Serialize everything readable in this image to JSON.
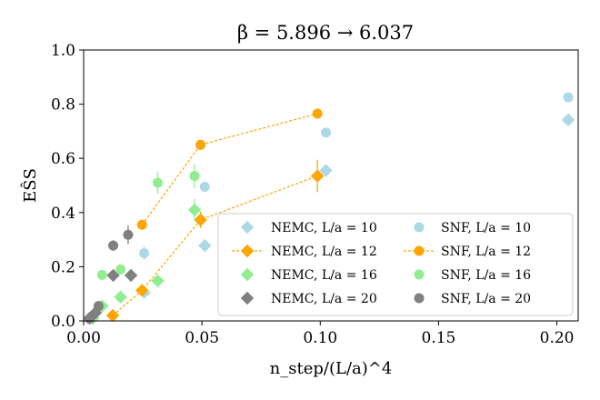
{
  "chart_data": {
    "type": "scatter",
    "title": "β = 5.896 → 6.037",
    "xlabel": "n_step/(L/a)^4",
    "ylabel": "EŜS",
    "xlim": [
      0.0,
      0.209
    ],
    "ylim": [
      0.0,
      1.0
    ],
    "xticks": [
      0.0,
      0.05,
      0.1,
      0.15,
      0.2
    ],
    "xtick_labels": [
      "0.00",
      "0.05",
      "0.10",
      "0.15",
      "0.20"
    ],
    "yticks": [
      0.0,
      0.2,
      0.4,
      0.6,
      0.8,
      1.0
    ],
    "ytick_labels": [
      "0.0",
      "0.2",
      "0.4",
      "0.6",
      "0.8",
      "1.0"
    ],
    "grid": false,
    "legend_position": "lower-right",
    "series": [
      {
        "name": "NEMC, L/a = 10",
        "method": "NEMC",
        "L": "10",
        "marker": "diamond",
        "color": "#add8e6",
        "line": false,
        "points": [
          {
            "x": 0.0256,
            "y": 0.105,
            "err": 0.01
          },
          {
            "x": 0.0512,
            "y": 0.278,
            "err": 0.012
          },
          {
            "x": 0.1024,
            "y": 0.555,
            "err": 0.01
          },
          {
            "x": 0.2048,
            "y": 0.742,
            "err": 0.01
          }
        ]
      },
      {
        "name": "NEMC, L/a = 12",
        "method": "NEMC",
        "L": "12",
        "marker": "diamond",
        "color": "#ffa500",
        "line": true,
        "points": [
          {
            "x": 0.0123,
            "y": 0.02,
            "err": 0.006
          },
          {
            "x": 0.0247,
            "y": 0.113,
            "err": 0.012
          },
          {
            "x": 0.0494,
            "y": 0.373,
            "err": 0.03
          },
          {
            "x": 0.0988,
            "y": 0.535,
            "err": 0.06
          }
        ]
      },
      {
        "name": "NEMC, L/a = 16",
        "method": "NEMC",
        "L": "16",
        "marker": "diamond",
        "color": "#90ee90",
        "line": false,
        "points": [
          {
            "x": 0.0039,
            "y": 0.01,
            "err": 0.004
          },
          {
            "x": 0.0078,
            "y": 0.055,
            "err": 0.008
          },
          {
            "x": 0.0156,
            "y": 0.088,
            "err": 0.01
          },
          {
            "x": 0.0313,
            "y": 0.148,
            "err": 0.025
          },
          {
            "x": 0.0469,
            "y": 0.41,
            "err": 0.04
          }
        ]
      },
      {
        "name": "NEMC, L/a = 20",
        "method": "NEMC",
        "L": "20",
        "marker": "diamond",
        "color": "#808080",
        "line": false,
        "points": [
          {
            "x": 0.0025,
            "y": 0.01,
            "err": 0.004
          },
          {
            "x": 0.005,
            "y": 0.03,
            "err": 0.006
          },
          {
            "x": 0.0125,
            "y": 0.168,
            "err": 0.01
          },
          {
            "x": 0.02,
            "y": 0.168,
            "err": 0.01
          }
        ]
      },
      {
        "name": "SNF, L/a = 10",
        "method": "SNF",
        "L": "10",
        "marker": "circle",
        "color": "#add8e6",
        "line": false,
        "points": [
          {
            "x": 0.0256,
            "y": 0.25,
            "err": 0.025
          },
          {
            "x": 0.0512,
            "y": 0.495,
            "err": 0.015
          },
          {
            "x": 0.1024,
            "y": 0.695,
            "err": 0.01
          },
          {
            "x": 0.2048,
            "y": 0.825,
            "err": 0.008
          }
        ]
      },
      {
        "name": "SNF, L/a = 12",
        "method": "SNF",
        "L": "12",
        "marker": "circle",
        "color": "#ffa500",
        "line": true,
        "points": [
          {
            "x": 0.0247,
            "y": 0.355,
            "err": 0.01
          },
          {
            "x": 0.0494,
            "y": 0.65,
            "err": 0.01
          },
          {
            "x": 0.0988,
            "y": 0.765,
            "err": 0.008
          }
        ]
      },
      {
        "name": "SNF, L/a = 16",
        "method": "SNF",
        "L": "16",
        "marker": "circle",
        "color": "#90ee90",
        "line": false,
        "points": [
          {
            "x": 0.0078,
            "y": 0.17,
            "err": 0.015
          },
          {
            "x": 0.0156,
            "y": 0.19,
            "err": 0.01
          },
          {
            "x": 0.0313,
            "y": 0.51,
            "err": 0.04
          },
          {
            "x": 0.0469,
            "y": 0.535,
            "err": 0.045
          }
        ]
      },
      {
        "name": "SNF, L/a = 20",
        "method": "SNF",
        "L": "20",
        "marker": "circle",
        "color": "#808080",
        "line": false,
        "points": [
          {
            "x": 0.0025,
            "y": 0.008,
            "err": 0.004
          },
          {
            "x": 0.0063,
            "y": 0.055,
            "err": 0.01
          },
          {
            "x": 0.0125,
            "y": 0.278,
            "err": 0.02
          },
          {
            "x": 0.0188,
            "y": 0.318,
            "err": 0.035
          }
        ]
      }
    ]
  }
}
